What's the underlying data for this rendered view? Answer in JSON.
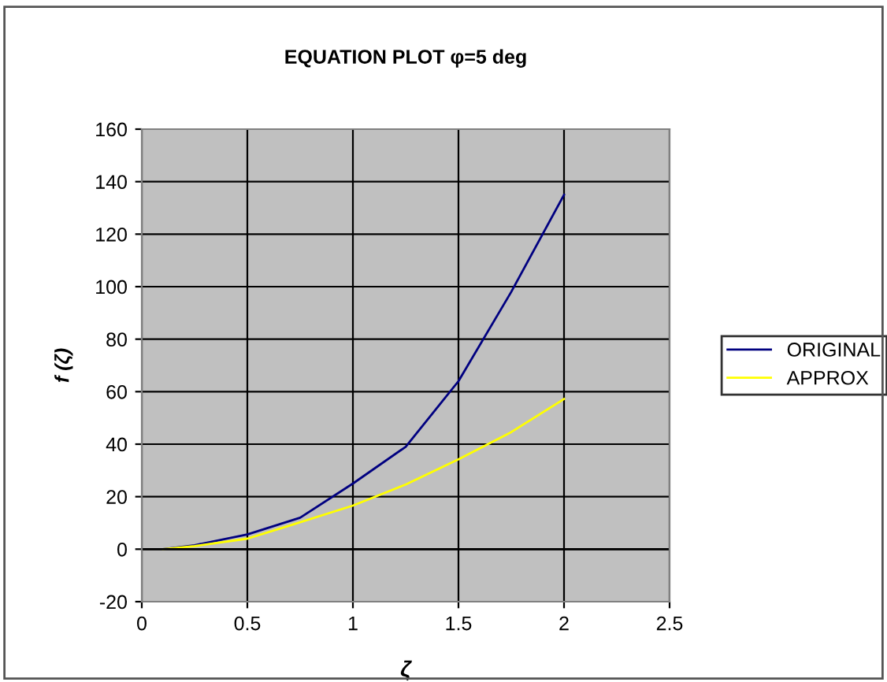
{
  "chart_data": {
    "type": "line",
    "title": "EQUATION PLOT φ=5 deg",
    "xlabel": "ζ",
    "ylabel": "f (ζ)",
    "xlim": [
      0,
      2.5
    ],
    "xticks": [
      0,
      0.5,
      1,
      1.5,
      2,
      2.5
    ],
    "ylim": [
      -20,
      160
    ],
    "yticks": [
      -20,
      0,
      20,
      40,
      60,
      80,
      100,
      120,
      140,
      160
    ],
    "grid": true,
    "legend": "right",
    "marker": "none",
    "line_style": "solid",
    "series": [
      {
        "name": "ORIGINAL",
        "color": "#000080",
        "x": [
          0.1,
          0.25,
          0.5,
          0.75,
          1,
          1.25,
          1.5,
          1.75,
          2
        ],
        "values": [
          0,
          1.5,
          5.6,
          12,
          25,
          39,
          64,
          98,
          135
        ]
      },
      {
        "name": "APPROX",
        "color": "#ffff00",
        "x": [
          0.1,
          0.25,
          0.5,
          0.7,
          1,
          1.25,
          1.5,
          1.75,
          2
        ],
        "values": [
          0,
          1.2,
          4,
          9,
          16.6,
          24.6,
          34.2,
          44.6,
          57.2
        ]
      }
    ]
  }
}
